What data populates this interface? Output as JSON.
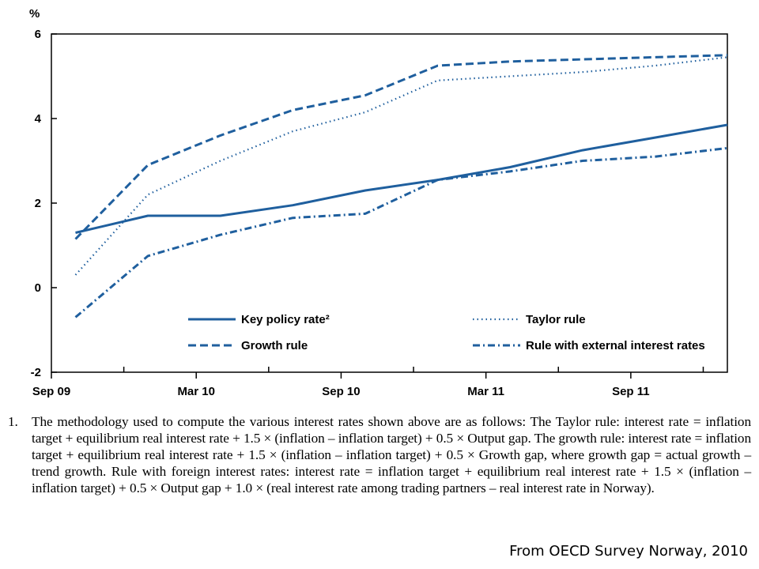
{
  "chart_data": {
    "type": "line",
    "ylabel": "%",
    "ylim": [
      -2,
      6
    ],
    "yticks": [
      -2,
      0,
      2,
      4,
      6
    ],
    "xlim": [
      0,
      28
    ],
    "x_ticks": [
      {
        "x": 0,
        "label": "Sep 09"
      },
      {
        "x": 6,
        "label": "Mar 10"
      },
      {
        "x": 12,
        "label": "Sep 10"
      },
      {
        "x": 18,
        "label": "Mar 11"
      },
      {
        "x": 24,
        "label": "Sep 11"
      }
    ],
    "x_minor_ticks": [
      3,
      9,
      15,
      21,
      27
    ],
    "x": [
      1,
      4,
      7,
      10,
      13,
      16,
      19,
      22,
      25,
      28
    ],
    "legend_position": "lower-center",
    "series": [
      {
        "name": "Key policy rate²",
        "style": "solid",
        "color": "#1f5f9e",
        "values": [
          1.3,
          1.7,
          1.7,
          1.95,
          2.3,
          2.55,
          2.85,
          3.25,
          3.55,
          3.85
        ]
      },
      {
        "name": "Growth rule",
        "style": "dashed",
        "color": "#1f5f9e",
        "values": [
          1.15,
          2.9,
          3.6,
          4.2,
          4.55,
          5.25,
          5.35,
          5.4,
          5.45,
          5.5
        ]
      },
      {
        "name": "Taylor rule",
        "style": "dotted",
        "color": "#1f5f9e",
        "values": [
          0.3,
          2.2,
          3.0,
          3.7,
          4.15,
          4.9,
          5.0,
          5.1,
          5.25,
          5.45
        ]
      },
      {
        "name": "Rule with external interest rates",
        "style": "dashdot",
        "color": "#1f5f9e",
        "values": [
          -0.7,
          0.75,
          1.25,
          1.65,
          1.75,
          2.55,
          2.75,
          3.0,
          3.1,
          3.3
        ]
      }
    ]
  },
  "footnote": {
    "number": "1.",
    "text": "The methodology used to compute the various interest rates shown above are as follows: The Taylor rule: interest rate = inflation target + equilibrium real interest rate + 1.5 × (inflation – inflation target) + 0.5 × Output gap. The growth rule: interest rate = inflation target + equilibrium real interest rate + 1.5 × (inflation – inflation target) + 0.5 × Growth gap, where growth gap = actual growth – trend growth. Rule with foreign interest rates: interest rate = inflation target + equilibrium real interest rate + 1.5 × (inflation – inflation target) + 0.5 × Output gap + 1.0 × (real interest rate among trading partners – real interest rate in Norway)."
  },
  "source": "From OECD  Survey Norway, 2010"
}
